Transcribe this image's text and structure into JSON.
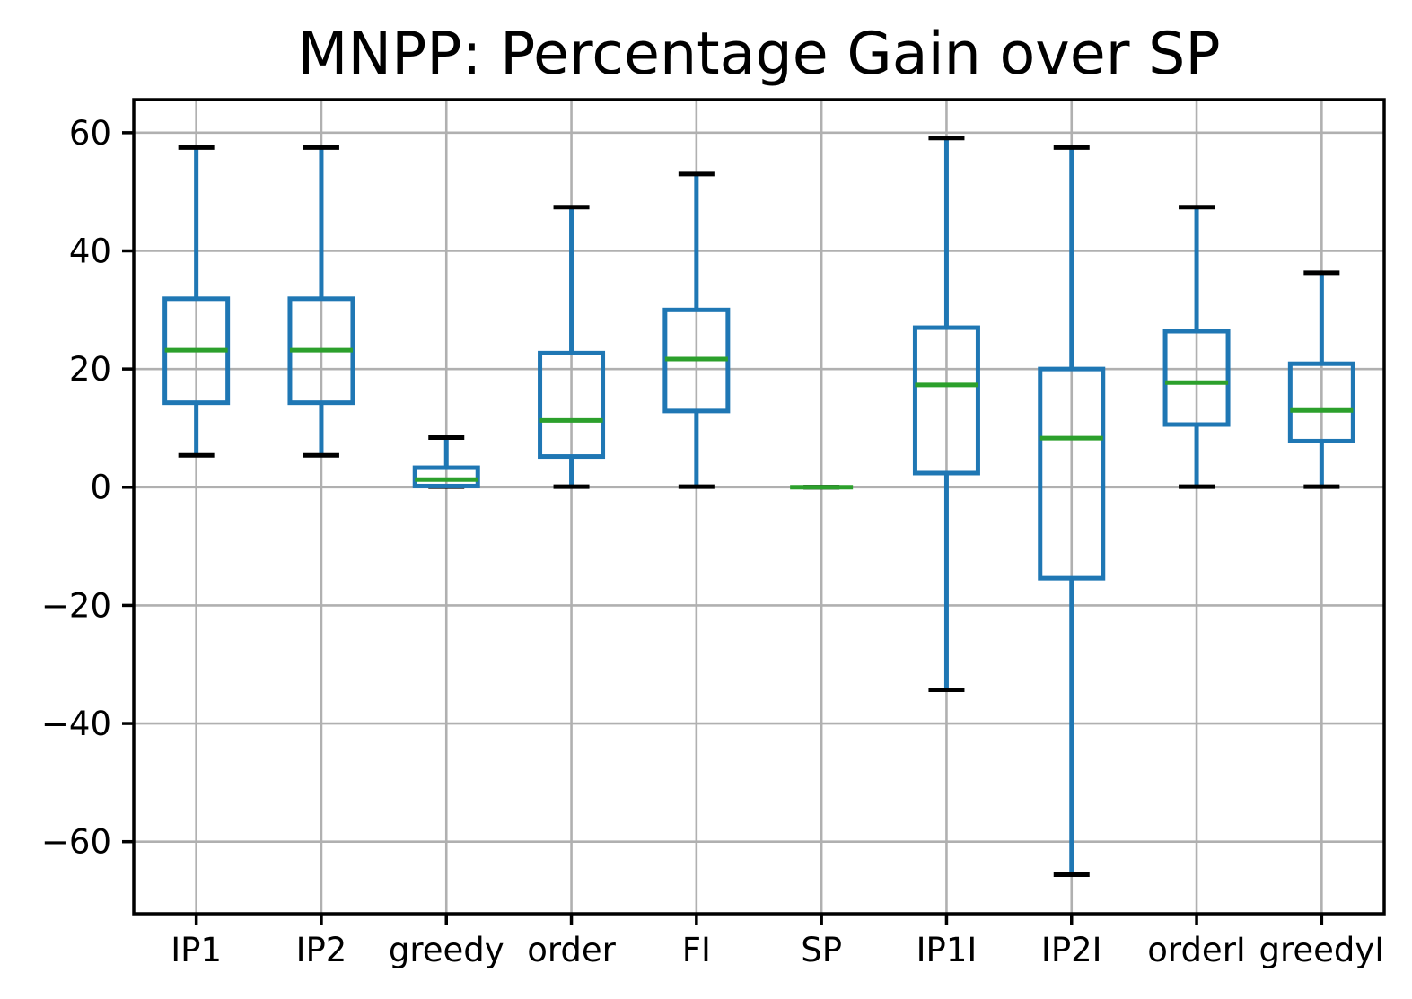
{
  "title": "MNPP: Percentage Gain over SP",
  "colors": {
    "background": "#ffffff",
    "box": "#1f77b4",
    "whisker": "#1f77b4",
    "median": "#2ca02c",
    "cap": "#000000",
    "grid": "#b0b0b0",
    "spine": "#000000",
    "text": "#000000"
  },
  "chart_data": {
    "type": "boxplot",
    "title": "MNPP: Percentage Gain over SP",
    "xlabel": "",
    "ylabel": "",
    "grid": true,
    "legend": "none",
    "ylim": [
      -72.2,
      65.6
    ],
    "y_ticks": [
      60,
      40,
      20,
      0,
      -20,
      -40,
      -60
    ],
    "y_tick_labels": [
      "60",
      "40",
      "20",
      "0",
      "−20",
      "−40",
      "−60"
    ],
    "categories": [
      "IP1",
      "IP2",
      "greedy",
      "order",
      "FI",
      "SP",
      "IP1I",
      "IP2I",
      "orderI",
      "greedyI"
    ],
    "series": [
      {
        "name": "IP1",
        "whisker_low": 5.4,
        "q1": 14.3,
        "median": 23.2,
        "q3": 31.9,
        "whisker_high": 57.5
      },
      {
        "name": "IP2",
        "whisker_low": 5.4,
        "q1": 14.3,
        "median": 23.2,
        "q3": 31.9,
        "whisker_high": 57.5
      },
      {
        "name": "greedy",
        "whisker_low": 0.1,
        "q1": 0.2,
        "median": 1.3,
        "q3": 3.3,
        "whisker_high": 8.4
      },
      {
        "name": "order",
        "whisker_low": 0.1,
        "q1": 5.2,
        "median": 11.3,
        "q3": 22.7,
        "whisker_high": 47.4
      },
      {
        "name": "FI",
        "whisker_low": 0.1,
        "q1": 12.9,
        "median": 21.7,
        "q3": 30.0,
        "whisker_high": 53.0
      },
      {
        "name": "SP",
        "whisker_low": 0.0,
        "q1": 0.0,
        "median": 0.0,
        "q3": 0.0,
        "whisker_high": 0.0
      },
      {
        "name": "IP1I",
        "whisker_low": -34.3,
        "q1": 2.4,
        "median": 17.3,
        "q3": 27.0,
        "whisker_high": 59.1
      },
      {
        "name": "IP2I",
        "whisker_low": -65.6,
        "q1": -15.4,
        "median": 8.3,
        "q3": 20.0,
        "whisker_high": 57.5
      },
      {
        "name": "orderI",
        "whisker_low": 0.1,
        "q1": 10.6,
        "median": 17.7,
        "q3": 26.4,
        "whisker_high": 47.4
      },
      {
        "name": "greedyI",
        "whisker_low": 0.1,
        "q1": 7.8,
        "median": 13.0,
        "q3": 20.9,
        "whisker_high": 36.3
      }
    ]
  }
}
